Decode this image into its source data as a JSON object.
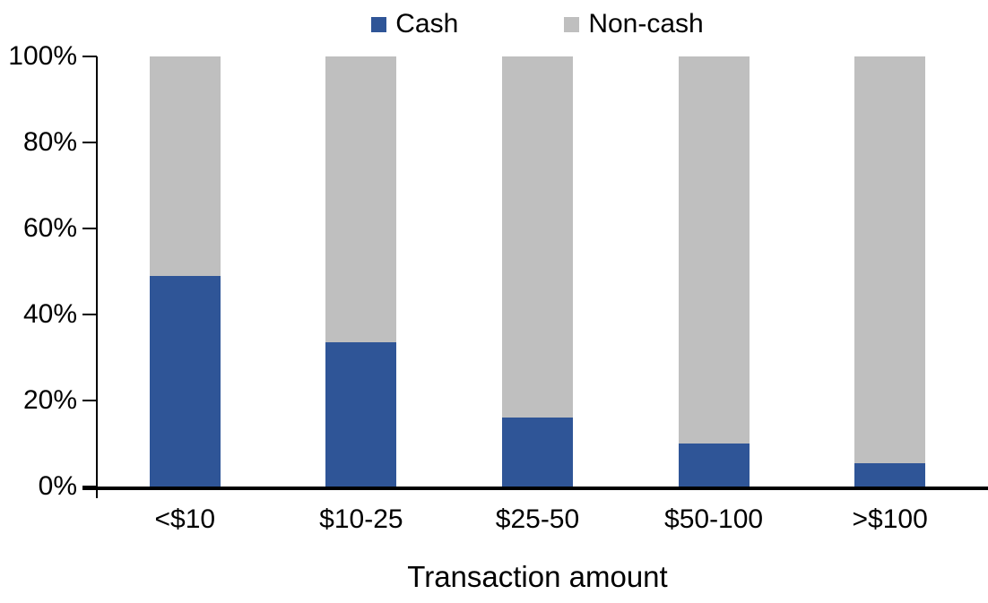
{
  "chart_data": {
    "type": "bar",
    "subtype": "stacked-100-percent",
    "title": "",
    "xlabel": "Transaction amount",
    "ylabel": "",
    "categories": [
      "<$10",
      "$10-25",
      "$25-50",
      "$50-100",
      ">$100"
    ],
    "series": [
      {
        "name": "Cash",
        "color": "#2F5597",
        "values": [
          49,
          33.5,
          16,
          10,
          5.5
        ]
      },
      {
        "name": "Non-cash",
        "color": "#BFBFBF",
        "values": [
          51,
          66.5,
          84,
          90,
          94.5
        ]
      }
    ],
    "ylim": [
      0,
      100
    ],
    "yticks": [
      {
        "value": 0,
        "label": "0%"
      },
      {
        "value": 20,
        "label": "20%"
      },
      {
        "value": 40,
        "label": "40%"
      },
      {
        "value": 60,
        "label": "60%"
      },
      {
        "value": 80,
        "label": "80%"
      },
      {
        "value": 100,
        "label": "100%"
      }
    ],
    "grid": false,
    "legend_position": "top-center",
    "axis_color": "#000000"
  }
}
